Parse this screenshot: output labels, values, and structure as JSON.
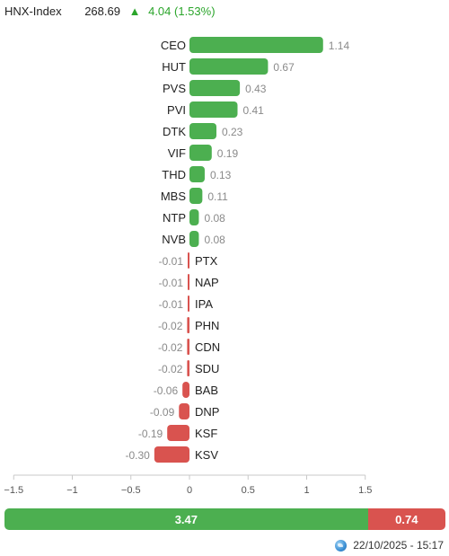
{
  "header": {
    "index_name": "HNX-Index",
    "index_value": "268.69",
    "change_arrow": "▲",
    "change": "4.04 (1.53%)"
  },
  "colors": {
    "up": "#4caf50",
    "down": "#d9534f",
    "up_text": "#2ba52b"
  },
  "chart_data": {
    "type": "bar",
    "orientation": "horizontal",
    "categories": [
      "CEO",
      "HUT",
      "PVS",
      "PVI",
      "DTK",
      "VIF",
      "THD",
      "MBS",
      "NTP",
      "NVB",
      "PTX",
      "NAP",
      "IPA",
      "PHN",
      "CDN",
      "SDU",
      "BAB",
      "DNP",
      "KSF",
      "KSV"
    ],
    "values": [
      1.14,
      0.67,
      0.43,
      0.41,
      0.23,
      0.19,
      0.13,
      0.11,
      0.08,
      0.08,
      -0.01,
      -0.01,
      -0.01,
      -0.02,
      -0.02,
      -0.02,
      -0.06,
      -0.09,
      -0.19,
      -0.3
    ],
    "value_labels": [
      "1.14",
      "0.67",
      "0.43",
      "0.41",
      "0.23",
      "0.19",
      "0.13",
      "0.11",
      "0.08",
      "0.08",
      "-0.01",
      "-0.01",
      "-0.01",
      "-0.02",
      "-0.02",
      "-0.02",
      "-0.06",
      "-0.09",
      "-0.19",
      "-0.30"
    ],
    "xlim": [
      -1.5,
      1.5
    ],
    "x_ticks": [
      -1.5,
      -1,
      -0.5,
      0,
      0.5,
      1,
      1.5
    ],
    "x_tick_labels": [
      "−1.5",
      "−1",
      "−0.5",
      "0",
      "0.5",
      "1",
      "1.5"
    ],
    "title": "",
    "xlabel": "",
    "ylabel": ""
  },
  "summary": {
    "up_value": 3.47,
    "down_value": 0.74,
    "up_label": "3.47",
    "down_label": "0.74"
  },
  "footer": {
    "icon": "globe-icon",
    "timestamp": "22/10/2025 - 15:17"
  }
}
